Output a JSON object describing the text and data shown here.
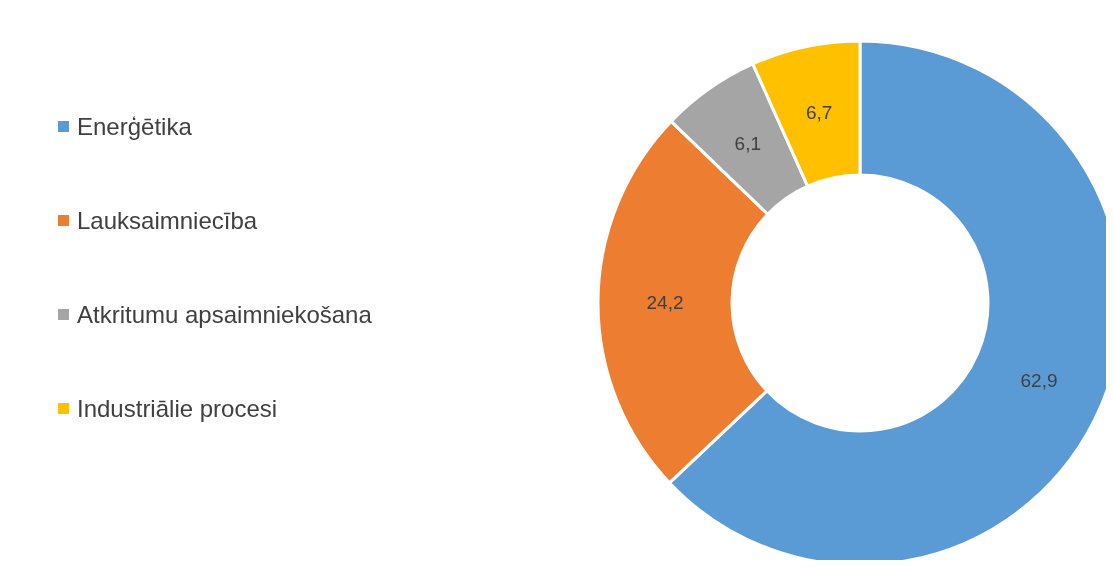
{
  "chart_data": {
    "type": "donut",
    "categories": [
      "Enerģētika",
      "Lauksaimniecība",
      "Atkritumu apsaimniekošana",
      "Industriālie procesi"
    ],
    "values": [
      62.9,
      24.2,
      6.1,
      6.7
    ],
    "value_labels": [
      "62,9",
      "24,2",
      "6,1",
      "6,7"
    ],
    "colors": [
      "#5b9bd5",
      "#ed7d31",
      "#a5a5a5",
      "#ffc000"
    ],
    "legend": "left"
  }
}
